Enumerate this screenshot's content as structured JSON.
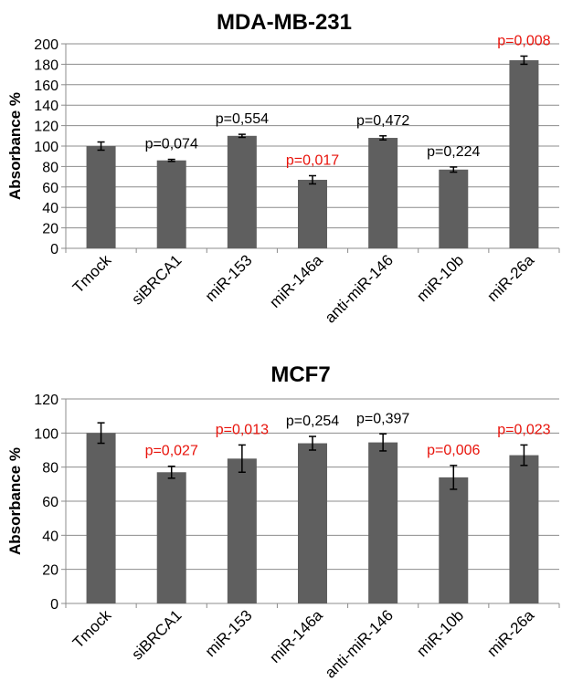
{
  "colors": {
    "bar": "#5f5f5f",
    "grid": "#8c8c8c",
    "axis": "#8c8c8c",
    "significant": "#e8130b",
    "not_significant": "#000000"
  },
  "chart_data": [
    {
      "type": "bar",
      "title": "MDA-MB-231",
      "ylabel": "Absorbance %",
      "xlabel": "",
      "ylim": [
        0,
        200
      ],
      "ytick_step": 20,
      "grid": true,
      "categories": [
        "Tmock",
        "siBRCA1",
        "miR-153",
        "miR-146a",
        "anti-miR-146",
        "miR-10b",
        "miR-26a"
      ],
      "values": [
        100,
        86,
        110,
        67,
        108,
        77,
        184
      ],
      "errors": [
        4,
        1,
        1.5,
        4,
        2,
        2.5,
        4
      ],
      "annotations": [
        "",
        "p=0,074",
        "p=0,554",
        "p=0,017",
        "p=0,472",
        "p=0,224",
        "p=0,008"
      ],
      "significant": [
        false,
        false,
        false,
        true,
        false,
        false,
        true
      ]
    },
    {
      "type": "bar",
      "title": "MCF7",
      "ylabel": "Absorbance %",
      "xlabel": "",
      "ylim": [
        0,
        120
      ],
      "ytick_step": 20,
      "grid": true,
      "categories": [
        "Tmock",
        "siBRCA1",
        "miR-153",
        "miR-146a",
        "anti-miR-146",
        "miR-10b",
        "miR-26a"
      ],
      "values": [
        100,
        77,
        85,
        94,
        94.5,
        74,
        87
      ],
      "errors": [
        6,
        3.5,
        8,
        4,
        5,
        7,
        6
      ],
      "annotations": [
        "",
        "p=0,027",
        "p=0,013",
        "p=0,254",
        "p=0,397",
        "p=0,006",
        "p=0,023"
      ],
      "significant": [
        false,
        true,
        true,
        false,
        false,
        true,
        true
      ]
    }
  ]
}
